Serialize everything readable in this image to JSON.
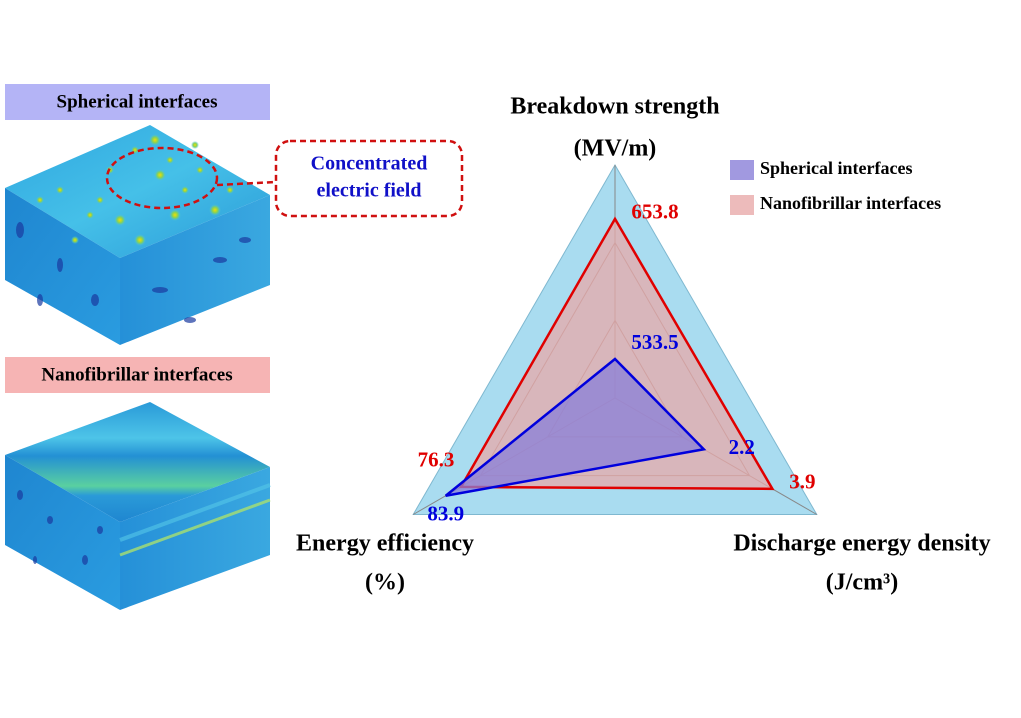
{
  "panels": {
    "top_label": "Spherical interfaces",
    "bottom_label": "Nanofibrillar interfaces",
    "callout": [
      "Concentrated",
      "electric field"
    ]
  },
  "chart_data": {
    "type": "radar",
    "categories": [
      "Breakdown strength",
      "Discharge energy density",
      "Energy efficiency"
    ],
    "units": [
      "(MV/m)",
      "(J/cm³)",
      "(%)"
    ],
    "rlims": [
      [
        500,
        700
      ],
      [
        0,
        5
      ],
      [
        0,
        100
      ]
    ],
    "series": [
      {
        "name": "Spherical interfaces",
        "color": "#0000dd",
        "fill": "#8a7fd8",
        "values": [
          533.5,
          2.2,
          83.9
        ]
      },
      {
        "name": "Nanofibrillar interfaces",
        "color": "#e00000",
        "fill": "#e8aaaa",
        "values": [
          653.8,
          3.9,
          76.3
        ]
      }
    ],
    "background": "#a9dcf0",
    "legend": "upper right"
  }
}
